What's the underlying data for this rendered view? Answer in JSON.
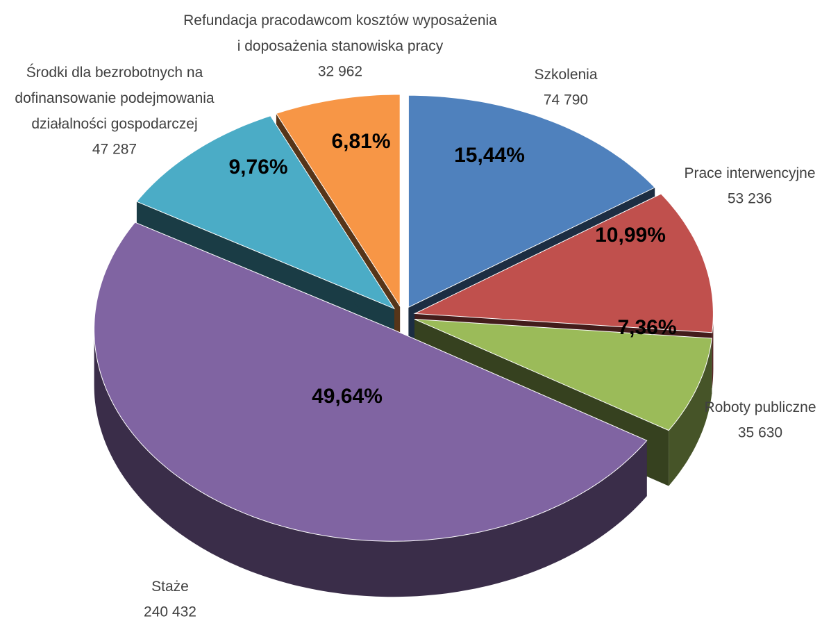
{
  "chart_data": {
    "type": "pie3d",
    "categories": [
      "Szkolenia",
      "Prace interwencyjne",
      "Roboty publiczne",
      "Staże",
      "Środki dla bezrobotnych na\ndofinansowanie podejmowania\ndziałalności gospodarczej",
      "Refundacja pracodawcom kosztów wyposażenia\ni doposażenia stanowiska pracy"
    ],
    "values": [
      74790,
      53236,
      35630,
      240432,
      47287,
      32962
    ],
    "value_labels": [
      "74 790",
      "53 236",
      "35 630",
      "240 432",
      "47 287",
      "32 962"
    ],
    "percents": [
      15.44,
      10.99,
      7.36,
      49.64,
      9.76,
      6.81
    ],
    "percent_labels": [
      "15,44%",
      "10,99%",
      "7,36%",
      "49,64%",
      "9,76%",
      "6,81%"
    ],
    "colors": [
      "#4f81bd",
      "#c0504d",
      "#9bbb59",
      "#8064a2",
      "#4bacc6",
      "#f79646"
    ]
  }
}
